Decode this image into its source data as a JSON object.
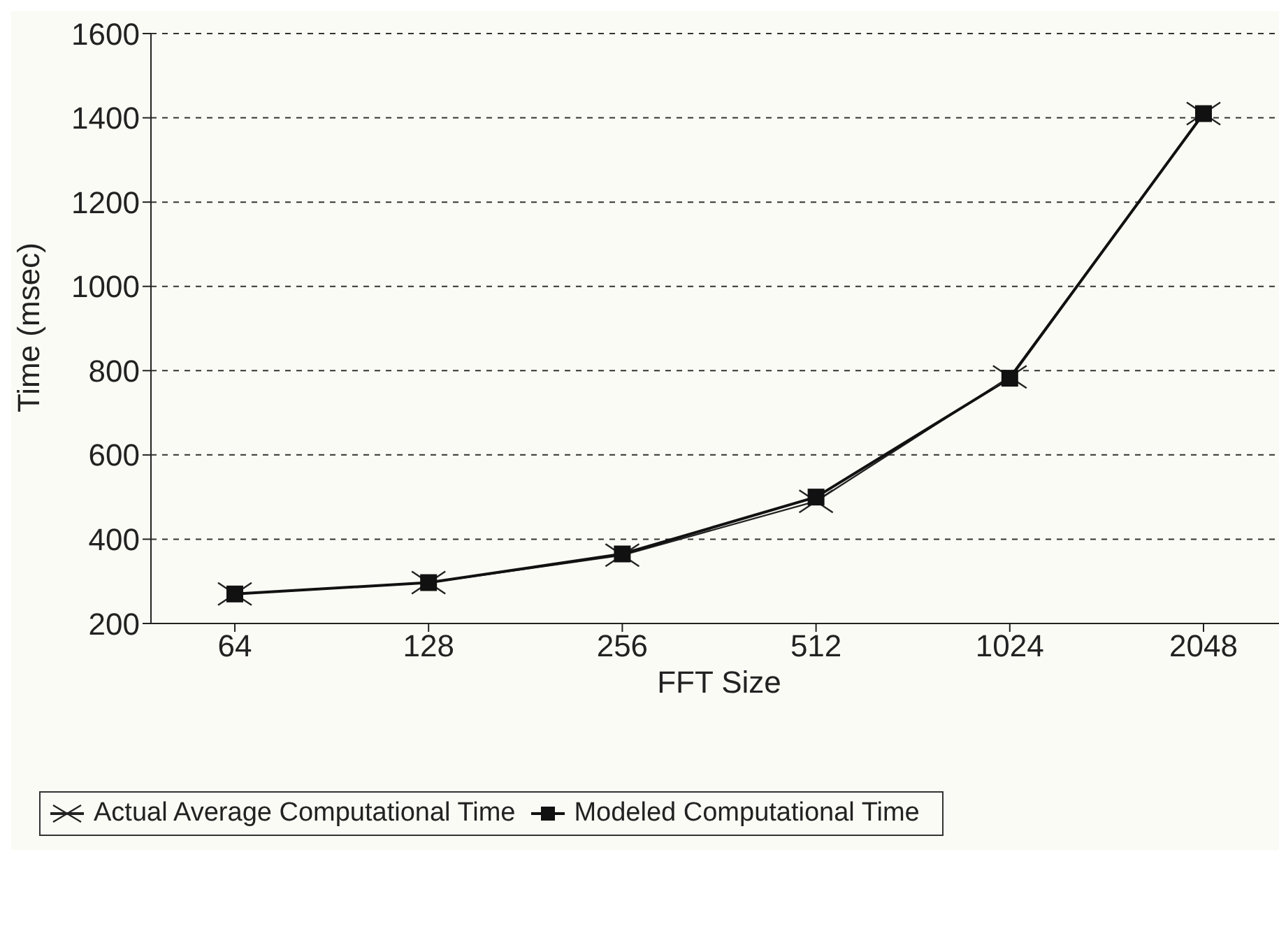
{
  "chart_data": {
    "type": "line",
    "xlabel": "FFT Size",
    "ylabel": "Time (msec)",
    "categories": [
      "64",
      "128",
      "256",
      "512",
      "1024",
      "2048"
    ],
    "ylim": [
      200,
      1600
    ],
    "yticks": [
      200,
      400,
      600,
      800,
      1000,
      1200,
      1400,
      1600
    ],
    "grid": "y",
    "legend": "bottom",
    "line_style": "solid",
    "series": [
      {
        "name": "Actual Average Computational Time",
        "color": "#222222",
        "marker": "cross",
        "values": [
          270,
          297,
          362,
          490,
          785,
          1410
        ]
      },
      {
        "name": "Modeled Computational Time",
        "color": "#111111",
        "marker": "square",
        "values": [
          270,
          297,
          365,
          500,
          782,
          1410
        ]
      }
    ]
  }
}
